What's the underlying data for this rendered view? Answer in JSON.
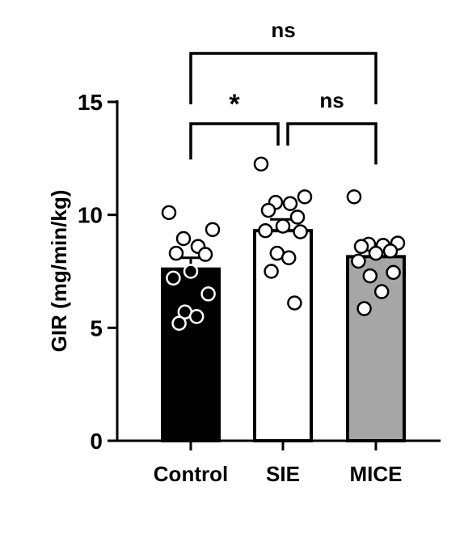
{
  "chart_data": {
    "type": "bar",
    "ylabel": "GIR (mg/min/kg)",
    "ylim": [
      0,
      15
    ],
    "yticks": [
      0,
      5,
      10,
      15
    ],
    "categories": [
      "Control",
      "SIE",
      "MICE"
    ],
    "values": [
      7.6,
      9.3,
      8.15
    ],
    "sem": [
      0.5,
      0.5,
      0.35
    ],
    "bar_colors": [
      "#000000",
      "#ffffff",
      "#a6a6a6"
    ],
    "points": [
      [
        10.1,
        9.35,
        8.95,
        8.6,
        8.3,
        8.25,
        7.5,
        7.2,
        6.5,
        5.7,
        5.5,
        5.2
      ],
      [
        12.25,
        10.8,
        10.55,
        10.5,
        10.2,
        9.9,
        9.5,
        9.3,
        9.25,
        8.3,
        8.1,
        7.5,
        6.1
      ],
      [
        10.8,
        8.75,
        8.7,
        8.65,
        8.6,
        8.4,
        8.3,
        7.95,
        7.45,
        7.3,
        6.6,
        5.85
      ]
    ],
    "point_fill": [
      "#ffffff",
      "#ffffff",
      "#ffffff"
    ],
    "comparisons": [
      {
        "from": "Control",
        "to": "SIE",
        "label": "*"
      },
      {
        "from": "SIE",
        "to": "MICE",
        "label": "ns"
      },
      {
        "from": "Control",
        "to": "MICE",
        "label": "ns"
      }
    ]
  }
}
